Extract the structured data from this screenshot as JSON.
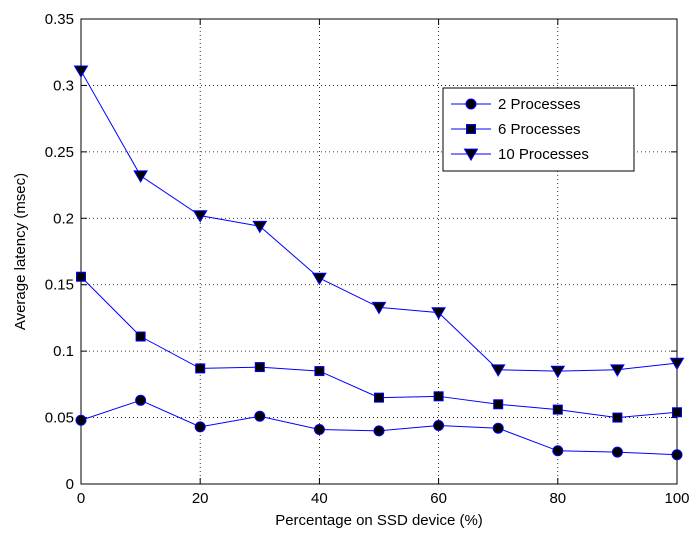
{
  "chart_data": {
    "type": "line",
    "title": "",
    "xlabel": "Percentage on SSD device (%)",
    "ylabel": "Average latency (msec)",
    "xlim": [
      0,
      100
    ],
    "ylim": [
      0,
      0.35
    ],
    "x_ticks": [
      "0",
      "20",
      "40",
      "60",
      "80",
      "100"
    ],
    "y_ticks": [
      "0",
      "0.05",
      "0.1",
      "0.15",
      "0.2",
      "0.25",
      "0.3",
      "0.35"
    ],
    "grid": true,
    "legend_position": "upper-right",
    "x": [
      0,
      10,
      20,
      30,
      40,
      50,
      60,
      70,
      80,
      90,
      100
    ],
    "series": [
      {
        "name": "2 Processes",
        "marker": "circle",
        "color": "#0000ff",
        "values": [
          0.048,
          0.063,
          0.043,
          0.051,
          0.041,
          0.04,
          0.044,
          0.042,
          0.025,
          0.024,
          0.022
        ]
      },
      {
        "name": "6 Processes",
        "marker": "square",
        "color": "#0000ff",
        "values": [
          0.156,
          0.111,
          0.087,
          0.088,
          0.085,
          0.065,
          0.066,
          0.06,
          0.056,
          0.05,
          0.054
        ]
      },
      {
        "name": "10 Processes",
        "marker": "triangle-down",
        "color": "#0000ff",
        "values": [
          0.311,
          0.232,
          0.202,
          0.194,
          0.155,
          0.133,
          0.129,
          0.086,
          0.085,
          0.086,
          0.091
        ]
      }
    ]
  }
}
